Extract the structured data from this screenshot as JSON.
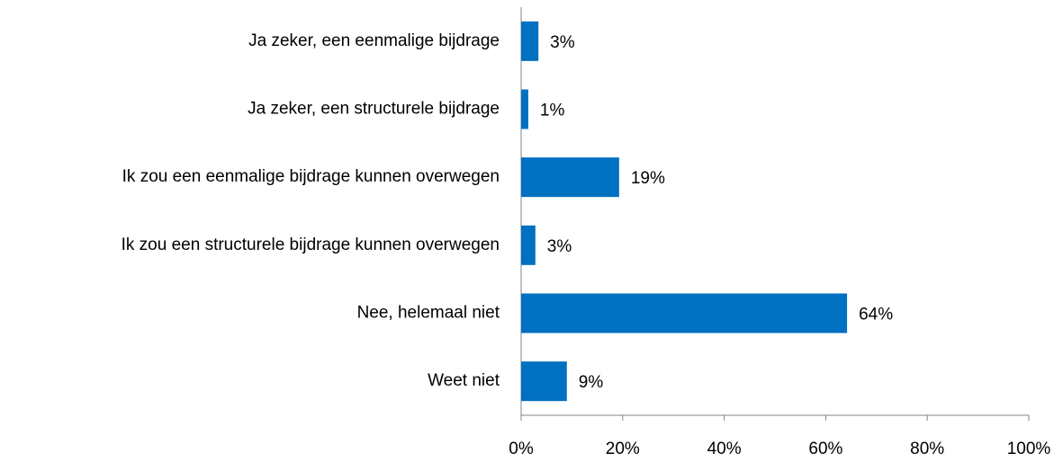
{
  "chart_data": {
    "type": "barh",
    "categories": [
      "Ja zeker, een eenmalige bijdrage",
      "Ja zeker, een structurele bijdrage",
      "Ik zou een eenmalige bijdrage kunnen overwegen",
      "Ik zou een structurele bijdrage kunnen overwegen",
      "Nee, helemaal niet",
      "Weet niet"
    ],
    "values": [
      3.4,
      1.4,
      19.3,
      2.8,
      64.2,
      9.0
    ],
    "value_labels": [
      "3%",
      "1%",
      "19%",
      "3%",
      "64%",
      "9%"
    ],
    "color": "#0070c0",
    "xlim": [
      0,
      100
    ],
    "xticks": [
      {
        "value": 0,
        "label": "0%"
      },
      {
        "value": 20,
        "label": "20%"
      },
      {
        "value": 40,
        "label": "40%"
      },
      {
        "value": 60,
        "label": "60%"
      },
      {
        "value": 80,
        "label": "80%"
      },
      {
        "value": 100,
        "label": "100%"
      }
    ],
    "grid": false
  }
}
